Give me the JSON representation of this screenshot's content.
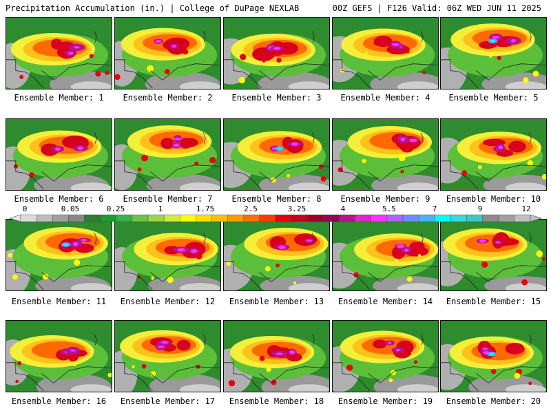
{
  "header": {
    "left": "Precipitation Accumulation (in.) | College of DuPage NEXLAB",
    "right": "00Z GEFS | F126 Valid: 06Z WED JUN 11 2025"
  },
  "members": [
    {
      "label": "Ensemble Member: 1"
    },
    {
      "label": "Ensemble Member: 2"
    },
    {
      "label": "Ensemble Member: 3"
    },
    {
      "label": "Ensemble Member: 4"
    },
    {
      "label": "Ensemble Member: 5"
    },
    {
      "label": "Ensemble Member: 6"
    },
    {
      "label": "Ensemble Member: 7"
    },
    {
      "label": "Ensemble Member: 8"
    },
    {
      "label": "Ensemble Member: 9"
    },
    {
      "label": "Ensemble Member: 10"
    },
    {
      "label": "Ensemble Member: 11"
    },
    {
      "label": "Ensemble Member: 12"
    },
    {
      "label": "Ensemble Member: 13"
    },
    {
      "label": "Ensemble Member: 14"
    },
    {
      "label": "Ensemble Member: 15"
    },
    {
      "label": "Ensemble Member: 16"
    },
    {
      "label": "Ensemble Member: 17"
    },
    {
      "label": "Ensemble Member: 18"
    },
    {
      "label": "Ensemble Member: 19"
    },
    {
      "label": "Ensemble Member: 20"
    }
  ],
  "legend": {
    "tick_labels": [
      "0",
      "0.05",
      "0.25",
      "1",
      "1.75",
      "2.5",
      "3.25",
      "4",
      "5.5",
      "7",
      "9",
      "12"
    ],
    "colors": [
      "#dcdcdc",
      "#bdbdbd",
      "#a0a0a0",
      "#878787",
      "#2e7d32",
      "#1b9e2f",
      "#37b24d",
      "#6cc644",
      "#9bd64a",
      "#d2ec3c",
      "#ffff00",
      "#ffe000",
      "#ffc000",
      "#ff9a00",
      "#ff6e00",
      "#ff3c00",
      "#e8000a",
      "#c8001e",
      "#a00028",
      "#8c0a50",
      "#b4148c",
      "#dc28c8",
      "#ff32ff",
      "#aa64ff",
      "#6e8cff",
      "#46b4ff",
      "#00ffff",
      "#32dcdc",
      "#3cc8c8",
      "#8c8c8c",
      "#a0a0a0",
      "#c0c0c0"
    ]
  }
}
